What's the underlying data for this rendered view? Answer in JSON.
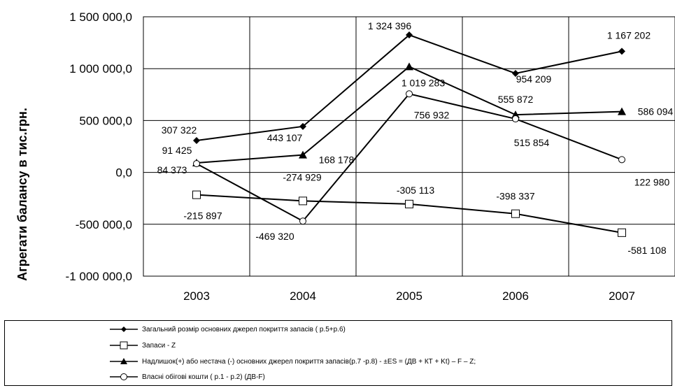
{
  "chart_data": {
    "type": "line",
    "ylabel": "Агрегати балансу в тис.грн.",
    "xlabel": "",
    "categories": [
      "2003",
      "2004",
      "2005",
      "2006",
      "2007"
    ],
    "ylim": [
      -1000000,
      1500000
    ],
    "yticks": [
      1500000,
      1000000,
      500000,
      0,
      -500000,
      -1000000
    ],
    "ytick_labels": [
      "1 500 000,0",
      "1 000 000,0",
      "500 000,0",
      "0,0",
      "-500 000,0",
      "-1 000 000,0"
    ],
    "grid": true,
    "legend_position": "bottom",
    "series": [
      {
        "name": "Загальний розмір основних джерел покриття запасів ( р.5+р.6)",
        "marker": "filled-diamond",
        "values": [
          307322,
          443107,
          1324396,
          954209,
          1167202
        ],
        "labels": [
          "307 322",
          "443 107",
          "1 324 396",
          "954 209",
          "1 167 202"
        ]
      },
      {
        "name": "Запаси - Z",
        "marker": "open-square",
        "values": [
          -215897,
          -274929,
          -305113,
          -398337,
          -581108
        ],
        "labels": [
          "-215 897",
          "-274 929",
          "-305 113",
          "-398 337",
          "-581 108"
        ]
      },
      {
        "name": "Надлишок(+) або нестача (-) основних джерел покриття запасів(р.7 -р.8) -      ±ES = (ДВ + КТ + Kt)  – F  –  Z;",
        "marker": "filled-triangle",
        "values": [
          91425,
          168178,
          1019283,
          555872,
          586094
        ],
        "labels": [
          "91 425",
          "168 178",
          "1 019 283",
          "555 872",
          "586 094"
        ]
      },
      {
        "name": "Власні обігові кошти ( р.1 - р.2) (ДВ-F)",
        "marker": "open-circle",
        "values": [
          84373,
          -469320,
          756932,
          515854,
          122980
        ],
        "labels": [
          "84 373",
          "-469 320",
          "756 932",
          "515 854",
          "122 980"
        ]
      }
    ]
  }
}
